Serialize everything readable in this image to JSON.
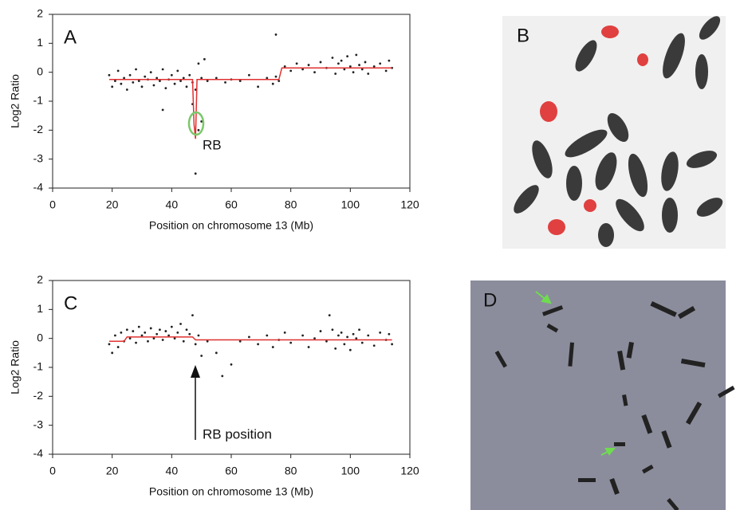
{
  "chart_data": [
    {
      "type": "scatter",
      "panel_label": "A",
      "annotation": "RB",
      "ylabel": "Log2 Ratio",
      "xlabel": "Position on chromosome 13 (Mb)",
      "xlim": [
        0,
        120
      ],
      "ylim": [
        -4,
        2
      ],
      "xticks": [
        0,
        20,
        40,
        60,
        80,
        100,
        120
      ],
      "yticks": [
        -4,
        -3,
        -2,
        -1,
        0,
        1,
        2
      ],
      "series": [
        {
          "style": "points",
          "color": "#222222",
          "x": [
            19,
            20,
            21,
            22,
            23,
            24,
            25,
            26,
            27,
            28,
            29,
            30,
            31,
            32,
            33,
            34,
            35,
            36,
            37,
            38,
            39,
            40,
            41,
            42,
            43,
            44,
            45,
            46,
            47,
            48,
            49,
            50,
            51,
            52,
            55,
            58,
            60,
            63,
            66,
            69,
            72,
            74,
            75,
            76,
            78,
            80,
            82,
            84,
            86,
            88,
            90,
            92,
            94,
            95,
            96,
            97,
            98,
            99,
            100,
            101,
            102,
            103,
            104,
            105,
            106,
            108,
            110,
            112,
            113,
            114,
            37,
            48,
            75,
            50,
            47,
            49
          ],
          "values": [
            -0.1,
            -0.5,
            -0.3,
            0.05,
            -0.4,
            -0.2,
            -0.6,
            -0.1,
            -0.35,
            0.1,
            -0.3,
            -0.5,
            -0.15,
            -0.25,
            0.0,
            -0.45,
            -0.2,
            -0.3,
            0.1,
            -0.55,
            -0.25,
            -0.1,
            -0.4,
            0.05,
            -0.3,
            -0.2,
            -0.5,
            -0.1,
            -0.35,
            -0.6,
            0.3,
            -0.2,
            0.45,
            -0.3,
            -0.2,
            -0.35,
            -0.25,
            -0.3,
            -0.1,
            -0.5,
            -0.2,
            -0.4,
            -0.15,
            -0.3,
            0.2,
            0.05,
            0.3,
            0.1,
            0.25,
            0.0,
            0.35,
            0.15,
            0.5,
            -0.05,
            0.3,
            0.4,
            0.1,
            0.55,
            0.2,
            0.0,
            0.6,
            0.25,
            0.1,
            0.35,
            -0.05,
            0.2,
            0.3,
            0.05,
            0.4,
            0.15,
            -1.3,
            -3.5,
            1.3,
            -1.7,
            -1.1,
            -2.0
          ]
        },
        {
          "style": "line",
          "color": "#e03030",
          "x": [
            19,
            47,
            47.5,
            48,
            48.5,
            76,
            77,
            114
          ],
          "values": [
            -0.25,
            -0.25,
            -1.8,
            -2.3,
            -0.25,
            -0.25,
            0.15,
            0.15
          ]
        }
      ]
    },
    {
      "type": "scatter",
      "panel_label": "C",
      "annotation": "RB position",
      "ylabel": "Log2 Ratio",
      "xlabel": "Position on chromosome 13 (Mb)",
      "xlim": [
        0,
        120
      ],
      "ylim": [
        -4,
        2
      ],
      "xticks": [
        0,
        20,
        40,
        60,
        80,
        100,
        120
      ],
      "yticks": [
        -4,
        -3,
        -2,
        -1,
        0,
        1,
        2
      ],
      "series": [
        {
          "style": "points",
          "color": "#222222",
          "x": [
            19,
            20,
            21,
            22,
            23,
            24,
            25,
            26,
            27,
            28,
            29,
            30,
            31,
            32,
            33,
            34,
            35,
            36,
            37,
            38,
            39,
            40,
            41,
            42,
            43,
            44,
            45,
            46,
            48,
            49,
            50,
            52,
            55,
            57,
            60,
            63,
            66,
            69,
            72,
            74,
            76,
            78,
            80,
            84,
            86,
            88,
            90,
            92,
            94,
            95,
            96,
            97,
            98,
            99,
            100,
            101,
            102,
            103,
            104,
            106,
            108,
            110,
            112,
            113,
            114,
            47,
            93
          ],
          "values": [
            -0.2,
            -0.5,
            0.1,
            -0.3,
            0.2,
            -0.1,
            0.3,
            0.0,
            0.25,
            -0.15,
            0.4,
            0.1,
            0.2,
            -0.1,
            0.35,
            0.0,
            0.15,
            0.3,
            -0.05,
            0.25,
            0.1,
            0.4,
            0.0,
            0.2,
            0.5,
            -0.1,
            0.3,
            0.15,
            -0.2,
            0.1,
            -0.6,
            -0.1,
            -0.5,
            -1.3,
            -0.9,
            -0.1,
            0.05,
            -0.2,
            0.1,
            -0.3,
            -0.05,
            0.2,
            -0.15,
            0.1,
            -0.3,
            0.0,
            0.25,
            -0.1,
            0.3,
            -0.35,
            0.1,
            0.2,
            -0.2,
            0.05,
            -0.4,
            0.15,
            0.0,
            0.3,
            -0.15,
            0.1,
            -0.25,
            0.2,
            -0.05,
            0.15,
            -0.2,
            0.8,
            0.8
          ]
        },
        {
          "style": "line",
          "color": "#e03030",
          "x": [
            19,
            24,
            25,
            47,
            48,
            114
          ],
          "values": [
            -0.1,
            -0.1,
            0.05,
            0.05,
            -0.05,
            -0.05
          ]
        }
      ]
    }
  ],
  "images": [
    {
      "label": "B"
    },
    {
      "label": "D"
    }
  ]
}
